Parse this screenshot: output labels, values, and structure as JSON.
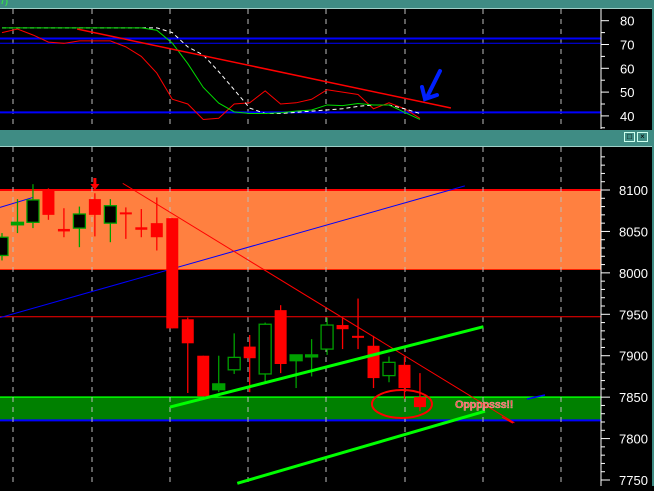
{
  "window": {
    "top_titlebar_label": "7)",
    "buttons": {
      "restore": "□",
      "close": "×"
    }
  },
  "colors": {
    "titlebar": "#3f8c84",
    "bull": "#00a000",
    "bear": "#ff0000",
    "resistance_zone": "#ff8040",
    "support_zone": "#008000",
    "channel": "#00ff00",
    "blue_line": "#0000ff",
    "annotation": "#ff0000",
    "arrow": "#0020ff"
  },
  "oscillator_pane": {
    "axis_ticks": [
      "80",
      "70",
      "60",
      "50",
      "40"
    ],
    "ylim": [
      35,
      82
    ],
    "levels": [
      72.5,
      70.5,
      41.5
    ],
    "series_green": [
      77,
      77,
      77,
      77,
      77,
      77,
      77,
      77,
      77,
      77,
      76,
      70.6,
      62,
      52,
      45.4,
      41.7,
      41,
      41,
      41.3,
      42,
      42.5,
      44.6,
      44.3,
      45.2,
      44.6,
      44.6,
      41.5,
      38.5
    ],
    "series_white_dashed": [
      77,
      77,
      77,
      77,
      77,
      77,
      77,
      77,
      77,
      77,
      77,
      75,
      69,
      65.6,
      58.6,
      51,
      43.3,
      41,
      41,
      41.5,
      42,
      42.5,
      43,
      44,
      44.6,
      44.6,
      43,
      41
    ],
    "series_red": [
      75,
      76.5,
      74,
      71,
      70.5,
      71.5,
      71.5,
      71.5,
      69,
      65,
      58,
      47,
      45,
      38.5,
      39,
      45,
      45.5,
      50.5,
      45,
      45.5,
      47,
      51,
      50,
      49,
      43,
      45.5,
      43,
      39
    ],
    "trendline": {
      "from": [
        4.85,
        76.5
      ],
      "to": [
        29,
        43.3
      ]
    },
    "annotation_arrow": "blue-arrow-down-left"
  },
  "price_pane": {
    "axis_ticks": [
      "8100",
      "8050",
      "8000",
      "7950",
      "7900",
      "7850",
      "7800",
      "7750"
    ],
    "ylim": [
      7745,
      8143
    ],
    "candles": [
      [
        8021,
        8048,
        8015,
        8043
      ],
      [
        8058,
        8089,
        8048,
        8061
      ],
      [
        8061,
        8107,
        8054,
        8088
      ],
      [
        8100,
        8102,
        8064,
        8070
      ],
      [
        8053,
        8078,
        8043,
        8050
      ],
      [
        8054,
        8080,
        8031,
        8071
      ],
      [
        8089,
        8096,
        8044,
        8070
      ],
      [
        8060,
        8089,
        8037,
        8081
      ],
      [
        8073,
        8079,
        8041,
        8072
      ],
      [
        8055,
        8077,
        8043,
        8052
      ],
      [
        8060,
        8091,
        8027,
        8043
      ],
      [
        8066,
        8066,
        7933,
        7933
      ],
      [
        7944,
        7946,
        7855,
        7915
      ],
      [
        7900,
        7900,
        7851,
        7851
      ],
      [
        7859,
        7900,
        7856,
        7866
      ],
      [
        7883,
        7927,
        7878,
        7898
      ],
      [
        7911,
        7925,
        7856,
        7897
      ],
      [
        7878,
        7940,
        7868,
        7938
      ],
      [
        7955,
        7961,
        7879,
        7890
      ],
      [
        7894,
        7901,
        7861,
        7901
      ],
      [
        7899,
        7920,
        7875,
        7901
      ],
      [
        7908,
        7946,
        7901,
        7937
      ],
      [
        7937,
        7946,
        7908,
        7932
      ],
      [
        7924,
        7969,
        7908,
        7922
      ],
      [
        7912,
        7924,
        7861,
        7873
      ],
      [
        7876,
        7899,
        7868,
        7892
      ],
      [
        7889,
        7899,
        7848,
        7861
      ],
      [
        7850,
        7879,
        7833,
        7838
      ]
    ],
    "resistance_zone": [
      8004,
      8100
    ],
    "support_zone": [
      7822,
      7850
    ],
    "horizontal_line": 7947,
    "downtrend": {
      "from": [
        7.8,
        8108
      ],
      "to": [
        33.1,
        7819
      ]
    },
    "blue_trend": {
      "from": [
        -0.13,
        7946
      ],
      "to": [
        29.9,
        8105
      ]
    },
    "blue_trend_upper": {
      "from": [
        -0.13,
        8079
      ],
      "to": [
        2,
        8091
      ]
    },
    "channel_upper": {
      "from": [
        10.85,
        7838
      ],
      "to": [
        31.1,
        7935
      ]
    },
    "channel_lower": {
      "from": [
        15.2,
        7746
      ],
      "to": [
        31.2,
        7833
      ]
    },
    "signal_arrow_bar": 6,
    "highlight_bar": 27,
    "annotation_text": "Oppppsss!!"
  }
}
